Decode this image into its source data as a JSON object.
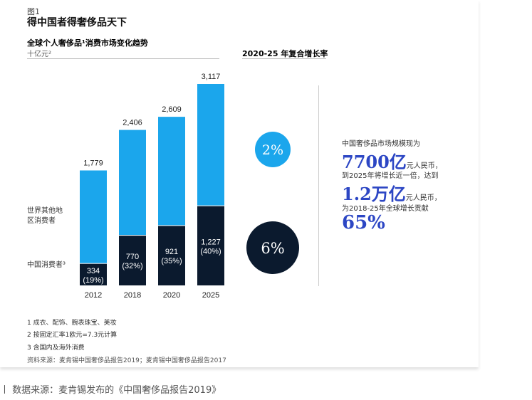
{
  "figure_label": "图1",
  "title": "得中国者得奢侈品天下",
  "chart_data": {
    "type": "bar",
    "stacked": true,
    "title": "全球个人奢侈品¹消费市场变化趋势",
    "unit": "十亿元²",
    "categories": [
      "2012",
      "2018",
      "2020",
      "2025"
    ],
    "totals": [
      "1,779",
      "2,406",
      "2,609",
      "3,117"
    ],
    "total_values": [
      1779,
      2406,
      2609,
      3117
    ],
    "series": [
      {
        "name": "中国消费者³",
        "values": [
          334,
          770,
          921,
          1227
        ],
        "labels": [
          "334",
          "770",
          "921",
          "1,227"
        ],
        "shares": [
          "(19%)",
          "(32%)",
          "(35%)",
          "(40%)"
        ],
        "color": "#0b1a2e"
      },
      {
        "name": "世界其他地区消费者",
        "values": [
          1445,
          1636,
          1688,
          1890
        ],
        "color": "#1ba6ec"
      }
    ],
    "series_labels": {
      "rest": [
        "世界其他地",
        "区消费者"
      ],
      "china": "中国消费者³"
    },
    "cagr": {
      "title": "2020-25 年复合增长率",
      "rest": "2%",
      "china": "6%"
    }
  },
  "highlights": {
    "l1": "中国奢侈品市场规模现为",
    "v1": "7700亿",
    "u1": "元人民币，",
    "l2": "到2025年将增长近一倍，达到",
    "v2": "1.2万亿",
    "u2": "元人民币，",
    "l3": "为2018-25年全球增长贡献",
    "v3": "65%"
  },
  "notes": [
    "1 成衣、配饰、腕表珠宝、美妆",
    "2 按固定汇率1欧元=7.3元计算",
    "3 含国内及海外消费",
    "资料来源：麦肯锡中国奢侈品报告2019；麦肯锡中国奢侈品报告2017"
  ],
  "caption": "丨 数据来源：麦肯锡发布的《中国奢侈品报告2019》",
  "colors": {
    "dark": "#0b1a2e",
    "light": "#1ba6ec",
    "accent": "#2c46c4"
  }
}
